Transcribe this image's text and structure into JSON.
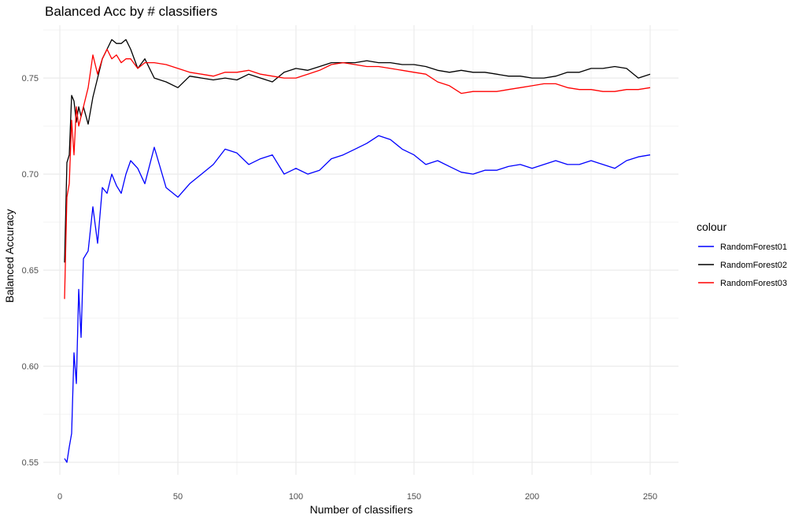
{
  "chart_data": {
    "type": "line",
    "title": "Balanced Acc by # classifiers",
    "xlabel": "Number of classifiers",
    "ylabel": "Balanced Accuracy",
    "xlim": [
      -7,
      262
    ],
    "ylim": [
      0.5435,
      0.7775
    ],
    "x_ticks": [
      0,
      50,
      100,
      150,
      200,
      250
    ],
    "x_tick_labels": [
      "0",
      "50",
      "100",
      "150",
      "200",
      "250"
    ],
    "y_ticks": [
      0.55,
      0.6,
      0.65,
      0.7,
      0.75
    ],
    "y_tick_labels": [
      "0.55",
      "0.60",
      "0.65",
      "0.70",
      "0.75"
    ],
    "grid": true,
    "legend": {
      "title": "colour",
      "position": "right"
    },
    "x": [
      2,
      3,
      4,
      5,
      6,
      7,
      8,
      9,
      10,
      12,
      14,
      16,
      18,
      20,
      22,
      24,
      26,
      28,
      30,
      33,
      36,
      40,
      45,
      50,
      55,
      60,
      65,
      70,
      75,
      80,
      85,
      90,
      95,
      100,
      105,
      110,
      115,
      120,
      125,
      130,
      135,
      140,
      145,
      150,
      155,
      160,
      165,
      170,
      175,
      180,
      185,
      190,
      195,
      200,
      205,
      210,
      215,
      220,
      225,
      230,
      235,
      240,
      245,
      250
    ],
    "series": [
      {
        "name": "RandomForest01",
        "color": "#0000ff",
        "values": [
          0.552,
          0.55,
          0.558,
          0.565,
          0.607,
          0.591,
          0.64,
          0.615,
          0.656,
          0.66,
          0.683,
          0.664,
          0.693,
          0.69,
          0.7,
          0.694,
          0.69,
          0.7,
          0.707,
          0.703,
          0.695,
          0.714,
          0.693,
          0.688,
          0.695,
          0.7,
          0.705,
          0.713,
          0.711,
          0.705,
          0.708,
          0.71,
          0.7,
          0.703,
          0.7,
          0.702,
          0.708,
          0.71,
          0.713,
          0.716,
          0.72,
          0.718,
          0.713,
          0.71,
          0.705,
          0.707,
          0.704,
          0.701,
          0.7,
          0.702,
          0.702,
          0.704,
          0.705,
          0.703,
          0.705,
          0.707,
          0.705,
          0.705,
          0.707,
          0.705,
          0.703,
          0.707,
          0.709,
          0.71
        ]
      },
      {
        "name": "RandomForest02",
        "color": "#000000",
        "values": [
          0.654,
          0.706,
          0.71,
          0.741,
          0.738,
          0.727,
          0.735,
          0.73,
          0.735,
          0.726,
          0.74,
          0.75,
          0.76,
          0.765,
          0.77,
          0.768,
          0.768,
          0.77,
          0.765,
          0.755,
          0.76,
          0.75,
          0.748,
          0.745,
          0.751,
          0.75,
          0.749,
          0.75,
          0.749,
          0.752,
          0.75,
          0.748,
          0.753,
          0.755,
          0.754,
          0.756,
          0.758,
          0.758,
          0.758,
          0.759,
          0.758,
          0.758,
          0.757,
          0.757,
          0.756,
          0.754,
          0.753,
          0.754,
          0.753,
          0.753,
          0.752,
          0.751,
          0.751,
          0.75,
          0.75,
          0.751,
          0.753,
          0.753,
          0.755,
          0.755,
          0.756,
          0.755,
          0.75,
          0.752
        ]
      },
      {
        "name": "RandomForest03",
        "color": "#ff0000",
        "values": [
          0.635,
          0.688,
          0.695,
          0.728,
          0.71,
          0.735,
          0.725,
          0.73,
          0.735,
          0.745,
          0.762,
          0.752,
          0.76,
          0.765,
          0.76,
          0.762,
          0.758,
          0.76,
          0.76,
          0.755,
          0.758,
          0.758,
          0.757,
          0.755,
          0.753,
          0.752,
          0.751,
          0.753,
          0.753,
          0.754,
          0.752,
          0.751,
          0.75,
          0.75,
          0.752,
          0.754,
          0.757,
          0.758,
          0.757,
          0.756,
          0.756,
          0.755,
          0.754,
          0.753,
          0.752,
          0.748,
          0.746,
          0.742,
          0.743,
          0.743,
          0.743,
          0.744,
          0.745,
          0.746,
          0.747,
          0.747,
          0.745,
          0.744,
          0.744,
          0.743,
          0.743,
          0.744,
          0.744,
          0.745
        ]
      }
    ]
  }
}
